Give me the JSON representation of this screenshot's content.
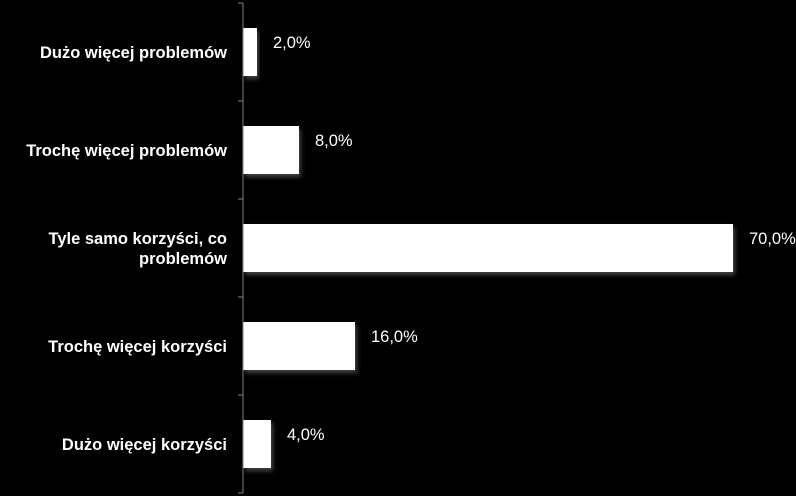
{
  "chart_data": {
    "type": "bar",
    "orientation": "horizontal",
    "categories": [
      [
        "Dużo więcej problemów"
      ],
      [
        "Trochę więcej problemów"
      ],
      [
        "Tyle samo korzyści, co",
        "problemów"
      ],
      [
        "Trochę więcej korzyści"
      ],
      [
        "Dużo więcej korzyści"
      ]
    ],
    "values": [
      2.0,
      8.0,
      70.0,
      16.0,
      4.0
    ],
    "value_labels": [
      "2,0%",
      "8,0%",
      "70,0%",
      "16,0%",
      "4,0%"
    ],
    "xlim": [
      0,
      70
    ],
    "grid": false,
    "legend": "none",
    "colors": {
      "background": "#000000",
      "bar": "#ffffff",
      "axis": "#808080",
      "text": "#ffffff"
    }
  }
}
